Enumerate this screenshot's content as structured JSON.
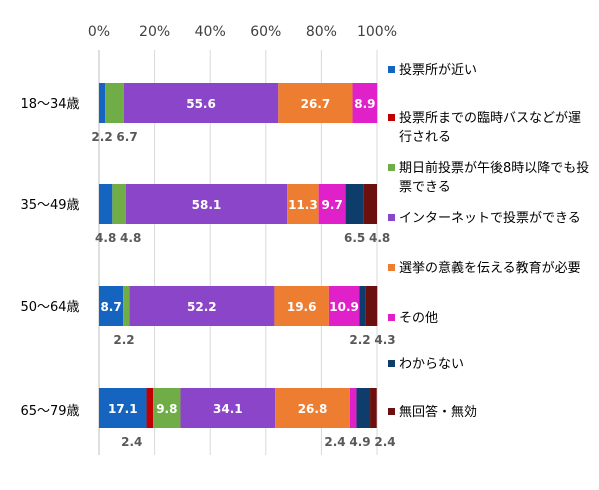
{
  "chart_data": {
    "type": "bar",
    "orientation": "horizontal",
    "stacked": true,
    "percent": true,
    "xlim": [
      0,
      100
    ],
    "ticks": [
      "0%",
      "20%",
      "40%",
      "60%",
      "80%",
      "100%"
    ],
    "grid": true,
    "legend_position": "right",
    "categories": [
      "18～34歳",
      "35～49歳",
      "50～64歳",
      "65～79歳"
    ],
    "series": [
      {
        "name": "投票所が近い",
        "color": "#1565c0",
        "values": [
          2.2,
          4.8,
          8.7,
          17.1
        ],
        "labels": [
          "2.2",
          "4.8",
          "8.7",
          "17.1"
        ]
      },
      {
        "name": "投票所までの臨時バスなどが運行される",
        "color": "#c00000",
        "values": [
          0,
          0,
          0,
          2.4
        ],
        "labels": [
          "",
          "",
          "",
          "2.4"
        ]
      },
      {
        "name": "期日前投票が午後8時以降でも投票できる",
        "color": "#70ad47",
        "values": [
          6.7,
          4.8,
          2.2,
          9.8
        ],
        "labels": [
          "6.7",
          "4.8",
          "2.2",
          "9.8"
        ]
      },
      {
        "name": "インターネットで投票ができる",
        "color": "#8b45c8",
        "values": [
          55.6,
          58.1,
          52.2,
          34.1
        ],
        "labels": [
          "55.6",
          "58.1",
          "52.2",
          "34.1"
        ]
      },
      {
        "name": "選挙の意義を伝える教育が必要",
        "color": "#ed7d31",
        "values": [
          26.7,
          11.3,
          19.6,
          26.8
        ],
        "labels": [
          "26.7",
          "11.3",
          "19.6",
          "26.8"
        ]
      },
      {
        "name": "その他",
        "color": "#e020c8",
        "values": [
          8.9,
          9.7,
          10.9,
          2.4
        ],
        "labels": [
          "8.9",
          "9.7",
          "10.9",
          "2.4"
        ]
      },
      {
        "name": "わからない",
        "color": "#0f3d6b",
        "values": [
          0,
          6.5,
          2.2,
          4.9
        ],
        "labels": [
          "",
          "6.5",
          "2.2",
          "4.9"
        ]
      },
      {
        "name": "無回答・無効",
        "color": "#6b0f0f",
        "values": [
          0,
          4.8,
          4.3,
          2.4
        ],
        "labels": [
          "",
          "4.8",
          "4.3",
          "2.4"
        ]
      }
    ]
  }
}
